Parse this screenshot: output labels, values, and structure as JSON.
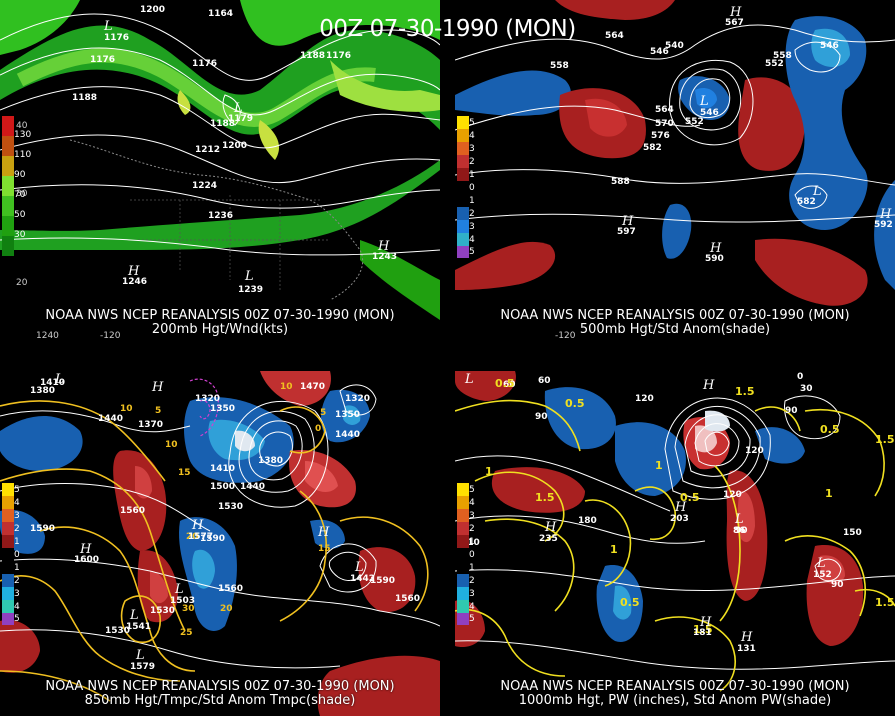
{
  "title": "00Z 07-30-1990 (MON)",
  "panels": [
    {
      "caption_line1": "NOAA NWS NCEP REANALYSIS 00Z 07-30-1990 (MON)",
      "caption_line2": "200mb Hgt/Wnd(kts)",
      "colorbar": {
        "ticks": [
          "130",
          "110",
          "90",
          "70",
          "50",
          "30"
        ],
        "colors": [
          "#d01818",
          "#c05010",
          "#c8a010",
          "#7fe030",
          "#40c020",
          "#20a010",
          "#108010"
        ]
      },
      "contour_labels": [
        "1200",
        "1164",
        "1176",
        "1176",
        "1188",
        "1188",
        "1176",
        "1188",
        "1212",
        "1200",
        "1224",
        "1236",
        "1176"
      ],
      "highs_lows": [
        "H",
        "H",
        "L",
        "L",
        "L"
      ],
      "center_values": [
        "1246",
        "1243",
        "1239",
        "1179"
      ],
      "lat_labels": [
        "40",
        "30",
        "20"
      ],
      "lon_labels": [
        "1240",
        "-120"
      ]
    },
    {
      "caption_line1": "NOAA NWS NCEP REANALYSIS 00Z 07-30-1990 (MON)",
      "caption_line2": "500mb Hgt/Std Anom(shade)",
      "colorbar": {
        "ticks": [
          "5",
          "4",
          "3",
          "2",
          "1",
          "0",
          "1",
          "2",
          "3",
          "4",
          "5"
        ],
        "colors": [
          "#ffe000",
          "#e8a000",
          "#e06020",
          "#c03030",
          "#901818",
          "#000000",
          "#000000",
          "#1860b0",
          "#2080e0",
          "#30b0c8",
          "#9040c0"
        ]
      },
      "contour_labels": [
        "558",
        "564",
        "546",
        "540",
        "552",
        "570",
        "576",
        "564",
        "582",
        "588",
        "552",
        "558",
        "546",
        "582"
      ],
      "highs_lows": [
        "H",
        "H",
        "L",
        "L",
        "H",
        "H"
      ],
      "center_values": [
        "597",
        "590",
        "592",
        "546",
        "567"
      ],
      "lon_labels": [
        "-120"
      ]
    },
    {
      "caption_line1": "NOAA NWS NCEP REANALYSIS 00Z 07-30-1990 (MON)",
      "caption_line2": "850mb Hgt/Tmpc/Std Anom Tmpc(shade)",
      "colorbar": {
        "ticks": [
          "5",
          "4",
          "3",
          "2",
          "1",
          "0",
          "1",
          "2",
          "3",
          "4",
          "5"
        ],
        "colors": [
          "#ffe000",
          "#e8a000",
          "#e06020",
          "#c03030",
          "#901818",
          "#000000",
          "#000000",
          "#1860b0",
          "#2080e0",
          "#30b0c8",
          "#9040c0"
        ]
      },
      "contour_labels": [
        "1410",
        "1380",
        "1440",
        "1370",
        "1320",
        "1350",
        "1410",
        "1380",
        "1500",
        "1440",
        "1530",
        "1560",
        "1590",
        "1560",
        "1590",
        "1530",
        "1560",
        "1530",
        "1590",
        "1320",
        "1470",
        "1350",
        "1440"
      ],
      "temp_labels": [
        "10",
        "5",
        "10",
        "15",
        "20",
        "25",
        "30",
        "20",
        "15",
        "0",
        "10",
        "5"
      ],
      "highs_lows": [
        "H",
        "H",
        "H",
        "L",
        "L",
        "L",
        "L",
        "H",
        "L"
      ],
      "center_values": [
        "1600",
        "1577",
        "1503",
        "1541",
        "1579",
        "1442"
      ]
    },
    {
      "caption_line1": "NOAA NWS NCEP REANALYSIS 00Z 07-30-1990 (MON)",
      "caption_line2": "1000mb Hgt, PW (inches), Std Anom PW(shade)",
      "colorbar": {
        "ticks": [
          "5",
          "4",
          "3",
          "2",
          "1",
          "0",
          "1",
          "2",
          "3",
          "4",
          "5"
        ],
        "colors": [
          "#ffe000",
          "#e8a000",
          "#e06020",
          "#c03030",
          "#901818",
          "#000000",
          "#000000",
          "#1860b0",
          "#2080e0",
          "#30b0c8",
          "#9040c0"
        ]
      },
      "contour_labels": [
        "60",
        "90",
        "120",
        "90",
        "120",
        "150",
        "180",
        "210",
        "90",
        "60",
        "30",
        "0",
        "90",
        "120"
      ],
      "pw_labels": [
        "0.5",
        "1.5",
        "0.5",
        "1",
        "0.5",
        "1.5",
        "0.5",
        "1",
        "1.5",
        "1.5",
        "0.5",
        "1",
        "1.5",
        "1"
      ],
      "highs_lows": [
        "H",
        "H",
        "H",
        "H",
        "L",
        "L",
        "L",
        "H"
      ],
      "center_values": [
        "235",
        "203",
        "181",
        "131",
        "86",
        "152"
      ]
    }
  ]
}
